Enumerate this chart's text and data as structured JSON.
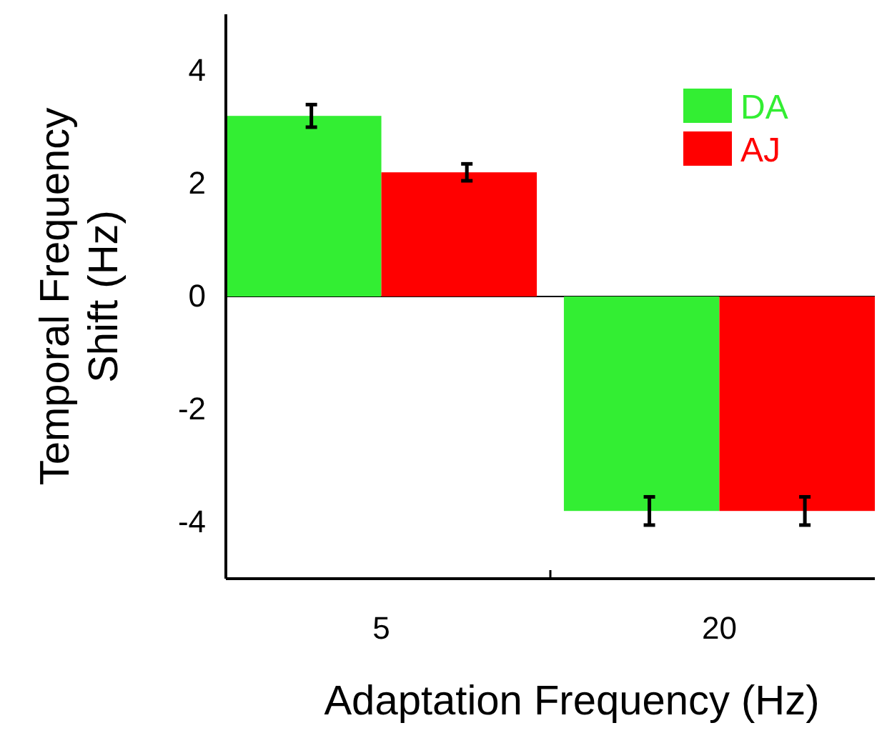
{
  "chart_data": {
    "type": "bar",
    "xlabel": "Adaptation Frequency (Hz)",
    "ylabel": "Temporal Frequency\nShift (Hz)",
    "categories": [
      "5",
      "20"
    ],
    "series": [
      {
        "name": "DA",
        "color": "#33ee33",
        "values": [
          3.2,
          -3.8
        ],
        "errors": [
          0.2,
          0.25
        ]
      },
      {
        "name": "AJ",
        "color": "#ff0000",
        "values": [
          2.2,
          -3.8
        ],
        "errors": [
          0.15,
          0.25
        ]
      }
    ],
    "ylim": [
      -5,
      5
    ],
    "yticks": [
      -4,
      -2,
      0,
      2,
      4
    ],
    "ref_lines": [
      {
        "axis": "y",
        "value": 0
      }
    ],
    "legend": "top right",
    "grid": false
  }
}
